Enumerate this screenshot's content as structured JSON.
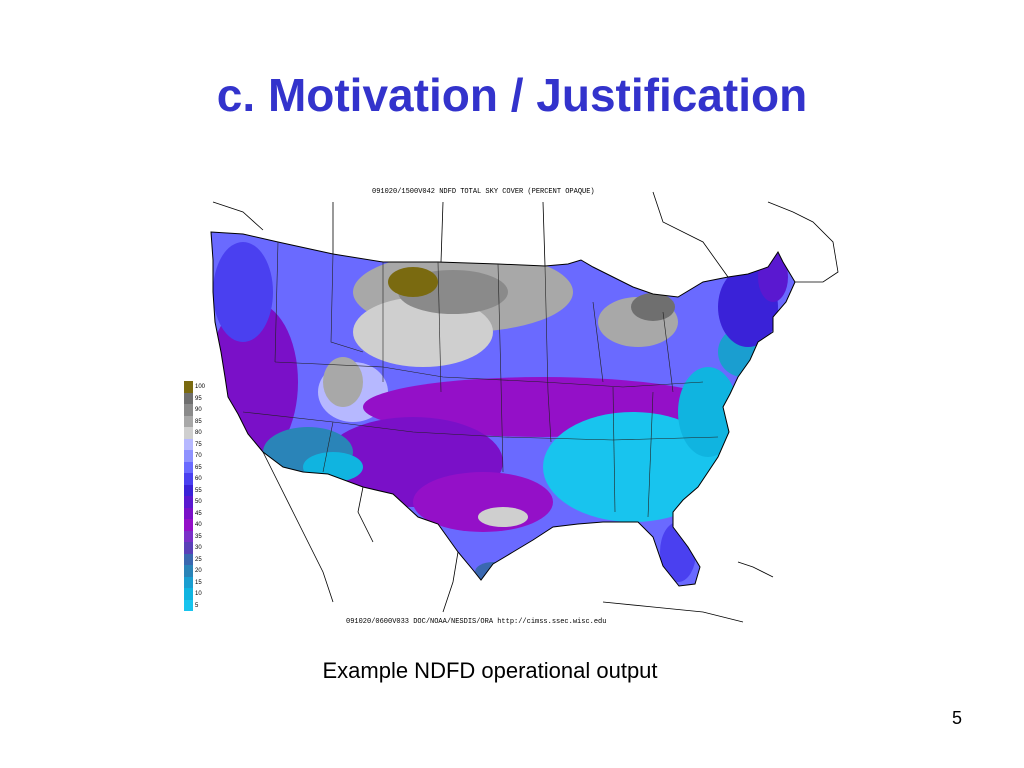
{
  "slide": {
    "title": "c. Motivation / Justification",
    "caption": "Example NDFD operational output",
    "page_number": "5"
  },
  "map": {
    "header": "091020/1500V042 NDFD TOTAL SKY COVER (PERCENT OPAQUE)",
    "footer": "091020/0600V033 DOC/NOAA/NESDIS/ORA  http://cimss.ssec.wisc.edu",
    "legend": [
      {
        "label": "100",
        "color": "#7a6a10"
      },
      {
        "label": "95",
        "color": "#6f6f6f"
      },
      {
        "label": "90",
        "color": "#8a8a8a"
      },
      {
        "label": "85",
        "color": "#a8a8a8"
      },
      {
        "label": "80",
        "color": "#cfcfcf"
      },
      {
        "label": "75",
        "color": "#b6b8ff"
      },
      {
        "label": "70",
        "color": "#8f92ff"
      },
      {
        "label": "65",
        "color": "#6a6aff"
      },
      {
        "label": "60",
        "color": "#4a40f0"
      },
      {
        "label": "55",
        "color": "#3a22d8"
      },
      {
        "label": "50",
        "color": "#5a18d0"
      },
      {
        "label": "45",
        "color": "#7a10c8"
      },
      {
        "label": "40",
        "color": "#9410c8"
      },
      {
        "label": "35",
        "color": "#7a30c8"
      },
      {
        "label": "30",
        "color": "#5a40b8"
      },
      {
        "label": "25",
        "color": "#3a68b0"
      },
      {
        "label": "20",
        "color": "#2a84b8"
      },
      {
        "label": "15",
        "color": "#1a9ed0"
      },
      {
        "label": "10",
        "color": "#10b4e0"
      },
      {
        "label": "5",
        "color": "#18c4ee"
      }
    ]
  }
}
